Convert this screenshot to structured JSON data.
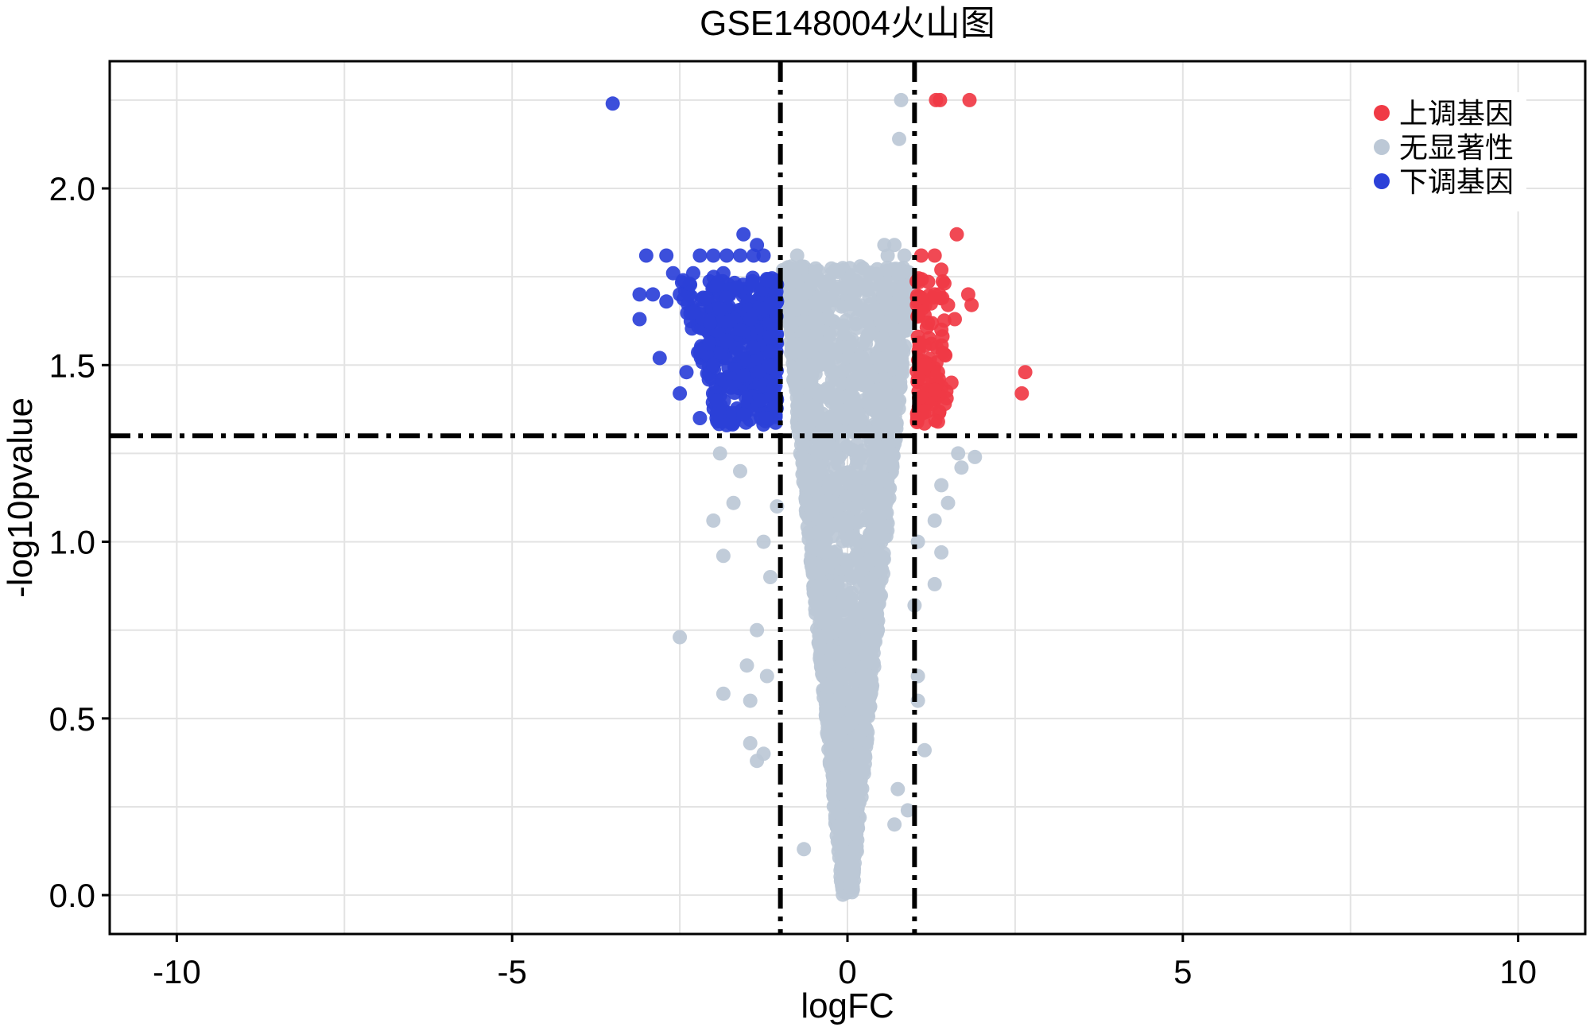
{
  "chart_data": {
    "type": "scatter",
    "title": "GSE148004火山图",
    "xlabel": "logFC",
    "ylabel": "-log10pvalue",
    "xlim": [
      -11,
      11
    ],
    "ylim": [
      -0.11,
      2.36
    ],
    "xticks": [
      -10,
      -5,
      0,
      5,
      10
    ],
    "xtick_labels": [
      "-10",
      "-5",
      "0",
      "5",
      "10"
    ],
    "yticks": [
      0,
      0.5,
      1,
      1.5,
      2
    ],
    "ytick_labels": [
      "0.0",
      "0.5",
      "1.0",
      "1.5",
      "2.0"
    ],
    "grid": true,
    "legend_position": "top-right",
    "thresholds": {
      "logFC": [
        -1,
        1
      ],
      "neg_log10_p": 1.3
    },
    "colors": {
      "up": "#f03a45",
      "none": "#bcc8d6",
      "down": "#2b40d8"
    },
    "series": [
      {
        "name": "上调基因",
        "color": "#f03a45",
        "points": [
          [
            1.32,
            2.25
          ],
          [
            1.38,
            2.25
          ],
          [
            1.82,
            2.25
          ],
          [
            1.63,
            1.87
          ],
          [
            1.1,
            1.81
          ],
          [
            1.3,
            1.81
          ],
          [
            1.4,
            1.77
          ],
          [
            1.8,
            1.7
          ],
          [
            1.85,
            1.67
          ],
          [
            1.5,
            1.67
          ],
          [
            1.3,
            1.7
          ],
          [
            1.1,
            1.69
          ],
          [
            1.6,
            1.63
          ],
          [
            1.2,
            1.62
          ],
          [
            1.4,
            1.6
          ],
          [
            1.05,
            1.58
          ],
          [
            1.25,
            1.56
          ],
          [
            1.45,
            1.53
          ],
          [
            1.15,
            1.5
          ],
          [
            1.35,
            1.48
          ],
          [
            1.05,
            1.46
          ],
          [
            1.55,
            1.45
          ],
          [
            1.3,
            1.43
          ],
          [
            1.1,
            1.41
          ],
          [
            1.45,
            1.39
          ],
          [
            1.2,
            1.37
          ],
          [
            1.05,
            1.35
          ],
          [
            1.35,
            1.34
          ],
          [
            2.65,
            1.48
          ],
          [
            2.6,
            1.42
          ]
        ]
      },
      {
        "name": "无显著性",
        "color": "#bcc8d6",
        "points": [
          [
            0.8,
            2.25
          ],
          [
            0.77,
            2.14
          ],
          [
            -0.75,
            1.81
          ],
          [
            0.55,
            1.84
          ],
          [
            0.7,
            1.84
          ],
          [
            0.6,
            1.81
          ],
          [
            0.85,
            1.81
          ],
          [
            0.75,
            1.76
          ],
          [
            1.65,
            1.25
          ],
          [
            1.9,
            1.24
          ],
          [
            1.7,
            1.21
          ],
          [
            1.4,
            1.16
          ],
          [
            1.5,
            1.11
          ],
          [
            1.3,
            1.06
          ],
          [
            1.4,
            0.97
          ],
          [
            1.3,
            0.88
          ],
          [
            1.05,
            0.55
          ],
          [
            1.15,
            0.41
          ],
          [
            -2.5,
            0.73
          ],
          [
            -1.85,
            0.96
          ],
          [
            -2.0,
            1.06
          ],
          [
            -1.7,
            1.11
          ],
          [
            -1.9,
            1.25
          ],
          [
            -1.6,
            1.2
          ],
          [
            -1.85,
            0.57
          ],
          [
            -1.45,
            0.55
          ],
          [
            -1.45,
            0.43
          ],
          [
            -1.5,
            0.65
          ],
          [
            -1.35,
            0.38
          ],
          [
            -1.25,
            0.4
          ],
          [
            -1.35,
            0.75
          ],
          [
            -1.2,
            0.62
          ],
          [
            -0.65,
            0.13
          ],
          [
            0.7,
            0.2
          ],
          [
            0.9,
            0.24
          ],
          [
            0.75,
            0.3
          ],
          [
            1.05,
            0.62
          ],
          [
            1.0,
            0.82
          ],
          [
            1.05,
            1.0
          ],
          [
            -1.15,
            0.9
          ],
          [
            -1.25,
            1.0
          ],
          [
            -1.05,
            1.1
          ]
        ]
      },
      {
        "name": "下调基因",
        "color": "#2b40d8",
        "points": [
          [
            -3.5,
            2.24
          ],
          [
            -3.0,
            1.81
          ],
          [
            -2.7,
            1.81
          ],
          [
            -2.2,
            1.81
          ],
          [
            -2.0,
            1.81
          ],
          [
            -1.8,
            1.81
          ],
          [
            -1.6,
            1.81
          ],
          [
            -1.4,
            1.81
          ],
          [
            -1.25,
            1.81
          ],
          [
            -1.55,
            1.87
          ],
          [
            -1.35,
            1.84
          ],
          [
            -2.6,
            1.76
          ],
          [
            -2.45,
            1.74
          ],
          [
            -2.3,
            1.76
          ],
          [
            -1.85,
            1.76
          ],
          [
            -3.1,
            1.7
          ],
          [
            -2.9,
            1.7
          ],
          [
            -2.7,
            1.68
          ],
          [
            -2.5,
            1.7
          ],
          [
            -2.3,
            1.65
          ],
          [
            -2.1,
            1.69
          ],
          [
            -1.9,
            1.66
          ],
          [
            -3.1,
            1.63
          ],
          [
            -2.8,
            1.52
          ],
          [
            -2.4,
            1.48
          ],
          [
            -2.5,
            1.42
          ],
          [
            -2.2,
            1.54
          ],
          [
            -2.0,
            1.5
          ],
          [
            -1.8,
            1.57
          ],
          [
            -1.6,
            1.6
          ],
          [
            -1.45,
            1.63
          ],
          [
            -1.25,
            1.66
          ],
          [
            -2.2,
            1.35
          ],
          [
            -1.95,
            1.4
          ],
          [
            -1.75,
            1.44
          ],
          [
            -1.55,
            1.47
          ],
          [
            -1.35,
            1.52
          ],
          [
            -1.15,
            1.58
          ],
          [
            -1.8,
            1.33
          ],
          [
            -1.55,
            1.36
          ],
          [
            -1.3,
            1.4
          ],
          [
            -1.1,
            1.44
          ],
          [
            -2.05,
            1.62
          ],
          [
            -1.65,
            1.72
          ],
          [
            -1.2,
            1.74
          ],
          [
            -1.4,
            1.55
          ],
          [
            -1.2,
            1.35
          ],
          [
            -1.05,
            1.68
          ]
        ]
      }
    ],
    "legend": [
      {
        "label": "上调基因",
        "color": "#f03a45"
      },
      {
        "label": "无显著性",
        "color": "#bcc8d6"
      },
      {
        "label": "下调基因",
        "color": "#2b40d8"
      }
    ]
  }
}
